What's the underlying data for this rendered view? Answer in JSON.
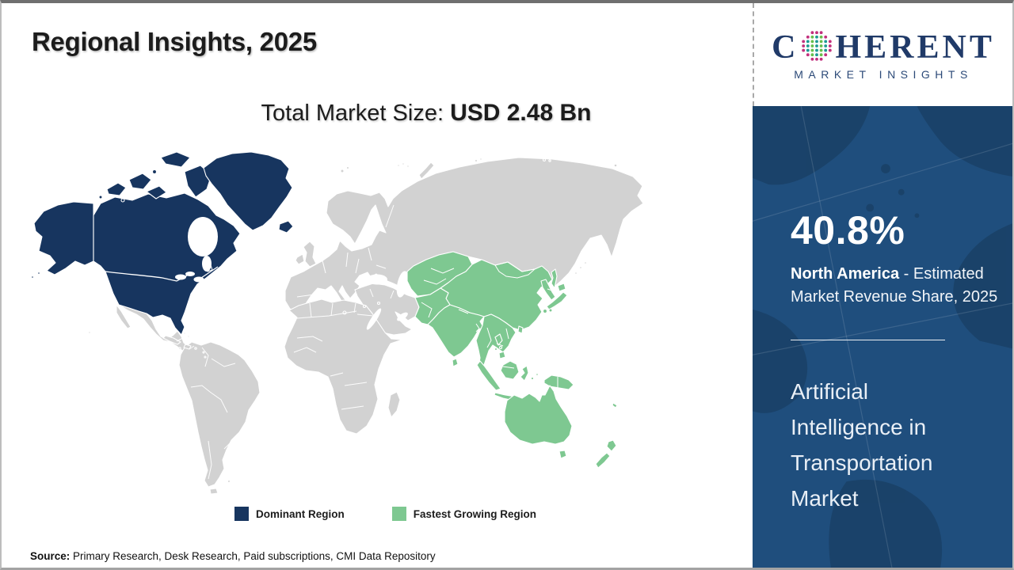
{
  "header": {
    "title": "Regional Insights, 2025",
    "subtitle_label": "Total Market Size: ",
    "subtitle_value": "USD 2.48 Bn"
  },
  "map": {
    "legend": [
      {
        "label": "Dominant Region",
        "color": "#17355f"
      },
      {
        "label": "Fastest Growing Region",
        "color": "#7ec891"
      }
    ]
  },
  "source": {
    "prefix": "Source:",
    "text": " Primary Research, Desk Research, Paid subscriptions, CMI Data Repository"
  },
  "logo": {
    "word_start": "C",
    "word_end": "HERENT",
    "tagline": "MARKET INSIGHTS"
  },
  "sidebar": {
    "stat_value": "40.8%",
    "stat_region": "North America",
    "stat_desc_rest": " - Estimated Market Revenue Share, 2025",
    "market_name": "Artificial Intelligence in Transportation Market"
  },
  "colors": {
    "dominant": "#17355f",
    "growing": "#7ec891",
    "land": "#d2d2d2",
    "sidebar_bg": "#1f4e7d",
    "sidebar_land": "#1a4166",
    "logo_navy": "#203a68",
    "tagline_navy": "#2c4a78",
    "globe_teal": "#1d9a93",
    "globe_green": "#67bf4c",
    "globe_magenta": "#c2307d",
    "text_dark": "#1c1c1c"
  }
}
